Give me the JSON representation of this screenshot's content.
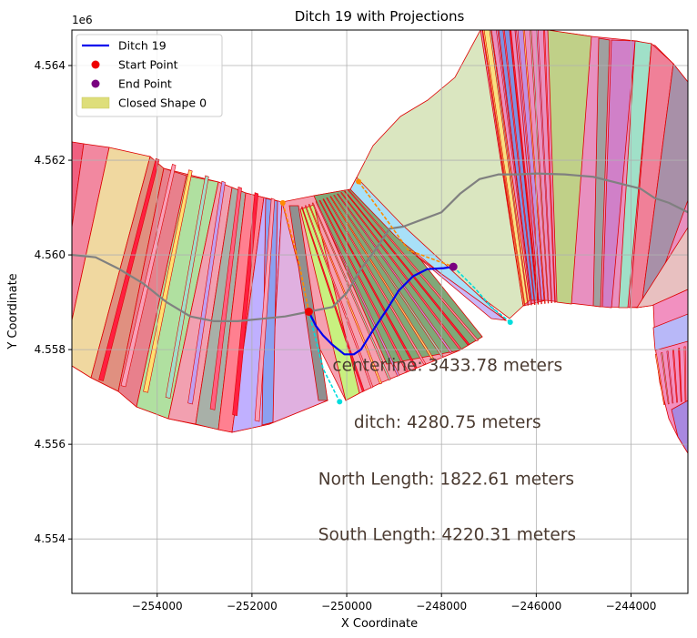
{
  "chart_data": {
    "type": "line",
    "title": "Ditch 19 with Projections",
    "xlabel": "X Coordinate",
    "ylabel": "Y Coordinate",
    "y_offset_label": "1e6",
    "xlim": [
      -255800,
      -242800
    ],
    "ylim": [
      4.55285,
      4.56475
    ],
    "x_ticks": [
      -254000,
      -252000,
      -250000,
      -248000,
      -246000,
      -244000
    ],
    "x_tick_labels": [
      "−254000",
      "−252000",
      "−250000",
      "−248000",
      "−246000",
      "−244000"
    ],
    "y_ticks": [
      4.554,
      4.556,
      4.558,
      4.56,
      4.562,
      4.564
    ],
    "y_tick_labels": [
      "4.554",
      "4.556",
      "4.558",
      "4.560",
      "4.562",
      "4.564"
    ],
    "grid": true,
    "legend_position": "top-left",
    "legend": [
      {
        "label": "Ditch 19",
        "kind": "line",
        "color": "#0000ee"
      },
      {
        "label": "Start Point",
        "kind": "marker",
        "color": "#ee0000"
      },
      {
        "label": "End Point",
        "kind": "marker",
        "color": "#7a0080"
      },
      {
        "label": "Closed Shape 0",
        "kind": "patch",
        "color": "#dede7a"
      }
    ],
    "series": [
      {
        "name": "Ditch 19",
        "color": "#0000ee",
        "x": [
          -250800,
          -250650,
          -250500,
          -250300,
          -250050,
          -249850,
          -249700,
          -249450,
          -249150,
          -248900,
          -248600,
          -248300,
          -247950,
          -247750
        ],
        "y": [
          4.5588,
          4.5585,
          4.5583,
          4.5581,
          4.5579,
          4.5579,
          4.558,
          4.5584,
          4.55885,
          4.55925,
          4.55955,
          4.5597,
          4.55972,
          4.55975
        ]
      },
      {
        "color": "#808080",
        "x": [
          -255800,
          -255300,
          -254800,
          -254300,
          -253800,
          -253300,
          -252800,
          -252300,
          -251800,
          -251300,
          -250800,
          -250300,
          -250000,
          -249700,
          -249400,
          -249100,
          -248800,
          -248400,
          -248000,
          -247600,
          -247200,
          -246800,
          -246400,
          -246000,
          -245400,
          -244800,
          -244200,
          -243800,
          -243500,
          -243200,
          -242800
        ],
        "y": [
          4.56,
          4.55995,
          4.5597,
          4.5594,
          4.559,
          4.5587,
          4.5586,
          4.5586,
          4.55865,
          4.5587,
          4.5588,
          4.5589,
          4.5592,
          4.5597,
          4.5601,
          4.56055,
          4.5606,
          4.56075,
          4.5609,
          4.5613,
          4.5616,
          4.5617,
          4.5617,
          4.56172,
          4.5617,
          4.56165,
          4.5615,
          4.5614,
          4.5612,
          4.5611,
          4.5609
        ]
      },
      {
        "color": "#ff8c00",
        "x": [
          -251350,
          -251000,
          -250800
        ],
        "y": [
          4.5611,
          4.5598,
          4.5588
        ]
      },
      {
        "color": "#00dddd",
        "x": [
          -250800,
          -250500,
          -250150
        ],
        "y": [
          4.5588,
          4.5576,
          4.5569
        ]
      },
      {
        "color": "#ff8c00",
        "x": [
          -249750,
          -249200,
          -248700,
          -247750
        ],
        "y": [
          4.56155,
          4.5608,
          4.5601,
          4.55975
        ]
      },
      {
        "color": "#00dddd",
        "x": [
          -247750,
          -247300,
          -246950,
          -246550
        ],
        "y": [
          4.55975,
          4.5593,
          4.5589,
          4.55858
        ]
      }
    ],
    "points": [
      {
        "label": "Start Point",
        "x": -250800,
        "y": 4.5588,
        "color": "#ee0000"
      },
      {
        "label": "End Point",
        "x": -247750,
        "y": 4.55975,
        "color": "#7a0080"
      },
      {
        "x": -251350,
        "y": 4.5611,
        "color": "#ff8c00"
      },
      {
        "x": -250150,
        "y": 4.5569,
        "color": "#00dddd"
      },
      {
        "x": -249750,
        "y": 4.56155,
        "color": "#ff8c00"
      },
      {
        "x": -246550,
        "y": 4.55858,
        "color": "#00dddd"
      }
    ],
    "annotations": [
      {
        "text": "centerline: 3433.78 meters",
        "x": -250300,
        "y": 4.55755
      },
      {
        "text": "ditch: 4280.75 meters",
        "x": -249850,
        "y": 4.55635
      },
      {
        "text": "North Length: 1822.61 meters",
        "x": -250600,
        "y": 4.55515
      },
      {
        "text": "South Length: 4220.31 meters",
        "x": -250600,
        "y": 4.55397
      }
    ]
  }
}
